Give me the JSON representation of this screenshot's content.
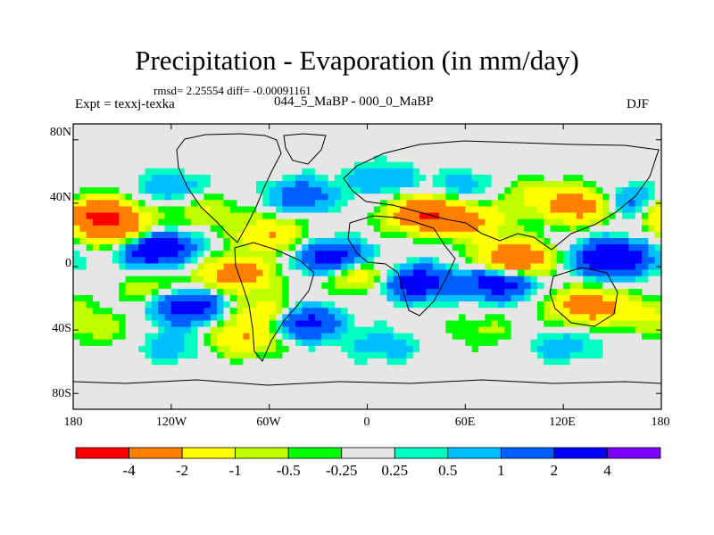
{
  "title": "Precipitation - Evaporation (in mm/day)",
  "stats_line": "rmsd= 2.25554 diff= -0.00091161",
  "left_label": "Expt = texxj-texka",
  "center_label": "044_5_MaBP - 000_0_MaBP",
  "right_label": "DJF",
  "y_ticks": [
    "80N",
    "40N",
    "0",
    "40S",
    "80S"
  ],
  "x_ticks": [
    "180",
    "120W",
    "60W",
    "0",
    "60E",
    "120E",
    "180"
  ],
  "colorbar": {
    "labels": [
      "-4",
      "-2",
      "-1",
      "-0.5",
      "-0.25",
      "0.25",
      "0.5",
      "1",
      "2",
      "4"
    ],
    "colors": [
      "#ff0000",
      "#ff7f00",
      "#ffff00",
      "#c0ff00",
      "#00ff00",
      "#e6e6e6",
      "#00ffc0",
      "#00c0ff",
      "#0060ff",
      "#0000ff",
      "#8000ff"
    ]
  },
  "chart_data": {
    "type": "heatmap",
    "title": "Precipitation - Evaporation (in mm/day)",
    "variable": "P-E",
    "units": "mm/day",
    "x_range": [
      -180,
      180
    ],
    "y_range": [
      -90,
      90
    ],
    "x_ticks": [
      -180,
      -120,
      -60,
      0,
      60,
      120,
      180
    ],
    "y_ticks": [
      80,
      40,
      0,
      -40,
      -80
    ],
    "contour_levels": [
      -4,
      -2,
      -1,
      -0.5,
      -0.25,
      0.25,
      0.5,
      1,
      2,
      4
    ],
    "features": [
      {
        "lon": -130,
        "lat": 12,
        "value": 4
      },
      {
        "lon": -20,
        "lat": 5,
        "value": 3
      },
      {
        "lon": 150,
        "lat": 5,
        "value": 4
      },
      {
        "lon": 80,
        "lat": -10,
        "value": 3
      },
      {
        "lon": -110,
        "lat": -25,
        "value": 3
      },
      {
        "lon": 30,
        "lat": -10,
        "value": 3
      },
      {
        "lon": -40,
        "lat": -35,
        "value": 3
      },
      {
        "lon": -150,
        "lat": 22,
        "value": -3
      },
      {
        "lon": -165,
        "lat": 33,
        "value": -4
      },
      {
        "lon": -60,
        "lat": 20,
        "value": -2
      },
      {
        "lon": 35,
        "lat": 33,
        "value": -4
      },
      {
        "lon": 90,
        "lat": 5,
        "value": -4
      },
      {
        "lon": 130,
        "lat": 38,
        "value": -3
      },
      {
        "lon": 135,
        "lat": -25,
        "value": -3
      },
      {
        "lon": -80,
        "lat": -5,
        "value": -3
      },
      {
        "lon": -60,
        "lat": -30,
        "value": -2
      },
      {
        "lon": -75,
        "lat": -45,
        "value": -2
      },
      {
        "lon": -5,
        "lat": -5,
        "value": -2
      },
      {
        "lon": 65,
        "lat": 28,
        "value": -2
      },
      {
        "lon": -100,
        "lat": 35,
        "value": -1
      },
      {
        "lon": 100,
        "lat": 45,
        "value": -1
      },
      {
        "lon": 170,
        "lat": -30,
        "value": -1
      },
      {
        "lon": -130,
        "lat": -15,
        "value": -1
      },
      {
        "lon": -160,
        "lat": -40,
        "value": -0.6
      },
      {
        "lon": 70,
        "lat": -40,
        "value": -0.6
      },
      {
        "lon": 160,
        "lat": 40,
        "value": 1.5
      },
      {
        "lon": -40,
        "lat": 45,
        "value": 1.5
      },
      {
        "lon": -120,
        "lat": 50,
        "value": 1
      },
      {
        "lon": 10,
        "lat": 55,
        "value": 1
      },
      {
        "lon": -120,
        "lat": -50,
        "value": 0.8
      },
      {
        "lon": 10,
        "lat": -50,
        "value": 0.8
      },
      {
        "lon": 120,
        "lat": -50,
        "value": 0.8
      },
      {
        "lon": 60,
        "lat": 50,
        "value": 0.8
      }
    ]
  }
}
